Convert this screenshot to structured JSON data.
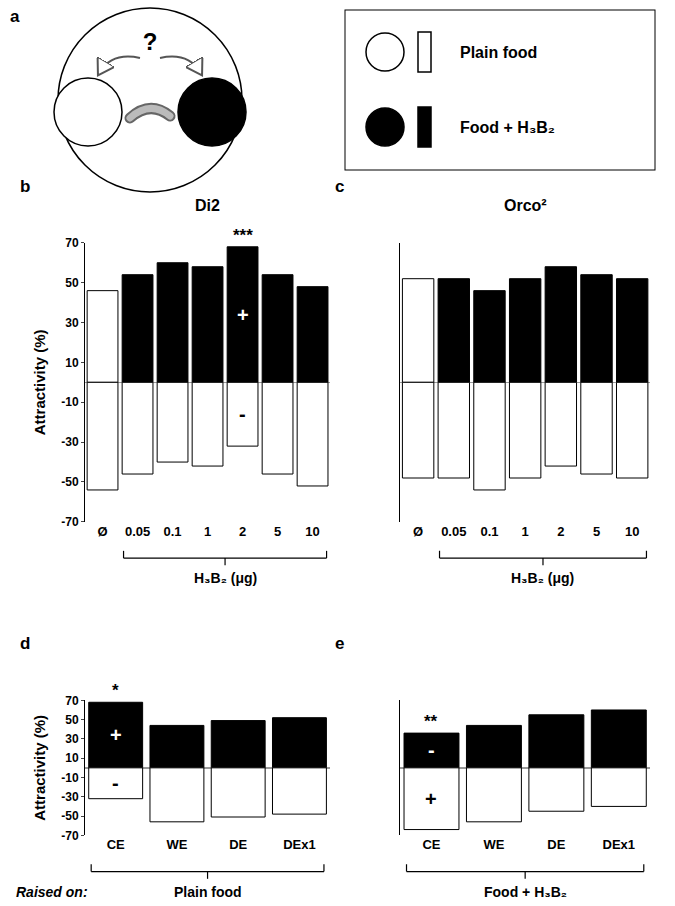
{
  "diagram": {
    "label": "a",
    "question": "?",
    "items": [
      {
        "name": "Plain food",
        "color": "#ffffff"
      },
      {
        "name": "Food + H₃B₂",
        "color": "#000000"
      }
    ]
  },
  "chart_data": [
    {
      "type": "bar",
      "label": "b",
      "title": "Di2",
      "ylabel": "Attractivity (%)",
      "xlabel": "H₃B₂ (μg)",
      "xlabel_span": [
        "0.05",
        "10"
      ],
      "categories": [
        "Ø",
        "0.05",
        "0.1",
        "1",
        "2",
        "5",
        "10"
      ],
      "series": [
        {
          "name": "Food + H₃B₂",
          "colors": [
            "#ffffff",
            "#000000",
            "#000000",
            "#000000",
            "#000000",
            "#000000",
            "#000000"
          ],
          "values": [
            46,
            54,
            60,
            58,
            68,
            54,
            48
          ]
        },
        {
          "name": "Plain food",
          "color": "#ffffff",
          "values": [
            -54,
            -46,
            -40,
            -42,
            -32,
            -46,
            -52
          ]
        }
      ],
      "stacked": true,
      "grid": false,
      "ylim": [
        -70,
        70
      ],
      "yticks": [
        -70,
        -50,
        -30,
        -10,
        10,
        30,
        50,
        70
      ],
      "annotations": [
        {
          "text": "***",
          "category": "2",
          "series": "Food + H₃B₂",
          "position": "above"
        },
        {
          "text": "+",
          "category": "2",
          "series": "Food + H₃B₂",
          "position": "inside"
        },
        {
          "text": "-",
          "category": "2",
          "series": "Plain food",
          "position": "inside"
        }
      ]
    },
    {
      "type": "bar",
      "label": "c",
      "title": "Orco²",
      "xlabel": "H₃B₂ (μg)",
      "xlabel_span": [
        "0.05",
        "10"
      ],
      "categories": [
        "Ø",
        "0.05",
        "0.1",
        "1",
        "2",
        "5",
        "10"
      ],
      "series": [
        {
          "name": "Food + H₃B₂",
          "colors": [
            "#ffffff",
            "#000000",
            "#000000",
            "#000000",
            "#000000",
            "#000000",
            "#000000"
          ],
          "values": [
            52,
            52,
            46,
            52,
            58,
            54,
            52
          ]
        },
        {
          "name": "Plain food",
          "color": "#ffffff",
          "values": [
            -48,
            -48,
            -54,
            -48,
            -42,
            -46,
            -48
          ]
        }
      ],
      "stacked": true,
      "grid": false,
      "tick_labels": "x",
      "ylim": [
        -70,
        70
      ],
      "yticks": [
        -70,
        -50,
        -30,
        -10,
        10,
        30,
        50,
        70
      ],
      "annotations": []
    },
    {
      "type": "bar",
      "label": "d",
      "ylabel": "Attractivity (%)",
      "xlabel": "Plain food",
      "xlabel_prefix": "Raised on:",
      "xlabel_span": [
        "CE",
        "DEx1"
      ],
      "categories": [
        "CE",
        "WE",
        "DE",
        "DEx1"
      ],
      "series": [
        {
          "name": "Food + H₃B₂",
          "color": "#000000",
          "values": [
            68,
            44,
            49,
            52
          ]
        },
        {
          "name": "Plain food",
          "color": "#ffffff",
          "values": [
            -32,
            -56,
            -51,
            -48
          ]
        }
      ],
      "stacked": true,
      "grid": false,
      "ylim": [
        -70,
        70
      ],
      "yticks": [
        -70,
        -50,
        -30,
        -10,
        10,
        30,
        50,
        70
      ],
      "annotations": [
        {
          "text": "*",
          "category": "CE",
          "series": "Food + H₃B₂",
          "position": "above"
        },
        {
          "text": "+",
          "category": "CE",
          "series": "Food + H₃B₂",
          "position": "inside"
        },
        {
          "text": "-",
          "category": "CE",
          "series": "Plain food",
          "position": "inside"
        }
      ]
    },
    {
      "type": "bar",
      "label": "e",
      "xlabel": "Food + H₃B₂",
      "xlabel_span": [
        "CE",
        "DEx1"
      ],
      "categories": [
        "CE",
        "WE",
        "DE",
        "DEx1"
      ],
      "series": [
        {
          "name": "Food + H₃B₂",
          "color": "#000000",
          "values": [
            36,
            44,
            55,
            60
          ]
        },
        {
          "name": "Plain food",
          "color": "#ffffff",
          "values": [
            -64,
            -56,
            -45,
            -40
          ]
        }
      ],
      "stacked": true,
      "grid": false,
      "tick_labels": "x",
      "ylim": [
        -70,
        70
      ],
      "yticks": [
        -70,
        -50,
        -30,
        -10,
        10,
        30,
        50,
        70
      ],
      "annotations": [
        {
          "text": "**",
          "category": "CE",
          "series": "Food + H₃B₂",
          "position": "above"
        },
        {
          "text": "-",
          "category": "CE",
          "series": "Food + H₃B₂",
          "position": "inside"
        },
        {
          "text": "+",
          "category": "CE",
          "series": "Plain food",
          "position": "inside"
        }
      ]
    }
  ]
}
